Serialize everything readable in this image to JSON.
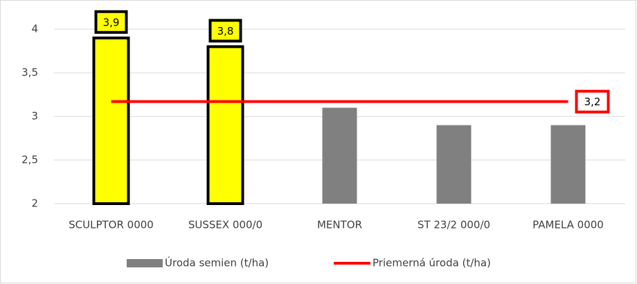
{
  "chart_data": {
    "type": "bar",
    "categories": [
      "SCULPTOR 0000",
      "SUSSEX 000/0",
      "MENTOR",
      "ST 23/2 000/0",
      "PAMELA 0000"
    ],
    "series": [
      {
        "name": "Úroda semien (t/ha)",
        "color": "#808080",
        "colors": [
          "#ffff00",
          "#ffff00",
          "#808080",
          "#808080",
          "#808080"
        ],
        "values": [
          3.9,
          3.8,
          3.1,
          2.9,
          2.9
        ],
        "value_labels": [
          "3,9",
          "3,8",
          null,
          null,
          null
        ]
      }
    ],
    "average": {
      "name": "Priemerná úroda (t/ha)",
      "color": "#ff0000",
      "value": 3.17,
      "value_label": "3,2"
    },
    "ylim": [
      2,
      4.2
    ],
    "yticks": [
      2,
      {
        "value": 2.5,
        "label": "2,5"
      },
      3,
      {
        "value": 3.5,
        "label": "3,5"
      },
      4
    ],
    "grid": true,
    "legend": "bottom"
  }
}
